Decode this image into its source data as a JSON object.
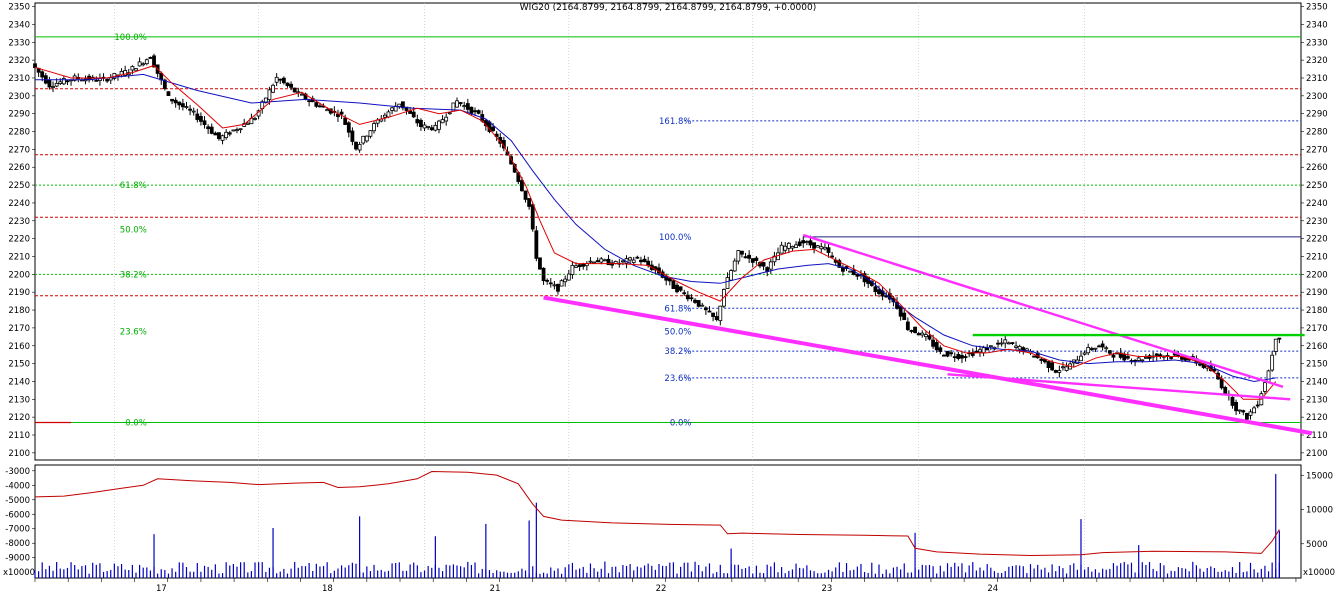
{
  "title": "WIG20 (2164.8799, 2164.8799, 2164.8799, 2164.8799, +0.0000)",
  "colors": {
    "candle": "#000000",
    "ma_fast": "#e00000",
    "ma_slow": "#1010c0",
    "trendline": "#ff30ff",
    "fib_green": "#00c000",
    "fib_blue": "#1030c0",
    "level_red": "#d00000",
    "volume": "#0000c0",
    "indicator": "#c00000"
  },
  "chart_data": [
    {
      "type": "candlestick",
      "title": "WIG20 (2164.8799, 2164.8799, 2164.8799, 2164.8799, +0.0000)",
      "x_axis": {
        "labels": [
          "17",
          "18",
          "21",
          "22",
          "23",
          "24"
        ]
      },
      "y_axis": {
        "range": [
          2096,
          2352
        ],
        "ticks": [
          2100,
          2110,
          2120,
          2130,
          2140,
          2150,
          2160,
          2170,
          2180,
          2190,
          2200,
          2210,
          2220,
          2230,
          2240,
          2250,
          2260,
          2270,
          2280,
          2290,
          2300,
          2310,
          2320,
          2330,
          2340,
          2350
        ]
      },
      "price_path": [
        [
          0,
          2318
        ],
        [
          5,
          2306
        ],
        [
          12,
          2310
        ],
        [
          20,
          2309
        ],
        [
          27,
          2314
        ],
        [
          33,
          2322
        ],
        [
          38,
          2299
        ],
        [
          45,
          2290
        ],
        [
          52,
          2276
        ],
        [
          58,
          2283
        ],
        [
          62,
          2288
        ],
        [
          68,
          2310
        ],
        [
          74,
          2301
        ],
        [
          80,
          2294
        ],
        [
          86,
          2289
        ],
        [
          90,
          2271
        ],
        [
          96,
          2286
        ],
        [
          102,
          2296
        ],
        [
          108,
          2283
        ],
        [
          112,
          2282
        ],
        [
          118,
          2297
        ],
        [
          124,
          2289
        ],
        [
          130,
          2274
        ],
        [
          134,
          2258
        ],
        [
          138,
          2238
        ],
        [
          140,
          2210
        ],
        [
          142,
          2196
        ],
        [
          146,
          2192
        ],
        [
          150,
          2204
        ],
        [
          156,
          2208
        ],
        [
          162,
          2206
        ],
        [
          168,
          2209
        ],
        [
          174,
          2201
        ],
        [
          178,
          2193
        ],
        [
          184,
          2185
        ],
        [
          190,
          2174
        ],
        [
          192,
          2192
        ],
        [
          196,
          2212
        ],
        [
          200,
          2208
        ],
        [
          204,
          2203
        ],
        [
          208,
          2215
        ],
        [
          214,
          2218
        ],
        [
          220,
          2214
        ],
        [
          224,
          2204
        ],
        [
          230,
          2199
        ],
        [
          234,
          2191
        ],
        [
          238,
          2187
        ],
        [
          240,
          2182
        ],
        [
          243,
          2170
        ],
        [
          248,
          2165
        ],
        [
          252,
          2156
        ],
        [
          258,
          2154
        ],
        [
          264,
          2158
        ],
        [
          270,
          2162
        ],
        [
          276,
          2157
        ],
        [
          280,
          2152
        ],
        [
          284,
          2146
        ],
        [
          288,
          2149
        ],
        [
          292,
          2157
        ],
        [
          296,
          2160
        ],
        [
          300,
          2155
        ],
        [
          306,
          2152
        ],
        [
          312,
          2155
        ],
        [
          318,
          2154
        ],
        [
          322,
          2152
        ],
        [
          328,
          2145
        ],
        [
          331,
          2134
        ],
        [
          334,
          2125
        ],
        [
          337,
          2120
        ],
        [
          340,
          2128
        ],
        [
          343,
          2146
        ],
        [
          345,
          2165
        ]
      ],
      "moving_average_fast": [
        [
          0,
          2316
        ],
        [
          10,
          2310
        ],
        [
          20,
          2310
        ],
        [
          27,
          2313
        ],
        [
          33,
          2317
        ],
        [
          38,
          2307
        ],
        [
          45,
          2295
        ],
        [
          52,
          2282
        ],
        [
          58,
          2284
        ],
        [
          66,
          2298
        ],
        [
          74,
          2302
        ],
        [
          82,
          2292
        ],
        [
          90,
          2284
        ],
        [
          98,
          2288
        ],
        [
          106,
          2293
        ],
        [
          112,
          2290
        ],
        [
          118,
          2292
        ],
        [
          124,
          2286
        ],
        [
          130,
          2272
        ],
        [
          136,
          2250
        ],
        [
          140,
          2230
        ],
        [
          144,
          2212
        ],
        [
          150,
          2206
        ],
        [
          156,
          2206
        ],
        [
          162,
          2206
        ],
        [
          170,
          2205
        ],
        [
          178,
          2196
        ],
        [
          184,
          2190
        ],
        [
          190,
          2185
        ],
        [
          196,
          2198
        ],
        [
          202,
          2208
        ],
        [
          210,
          2213
        ],
        [
          216,
          2214
        ],
        [
          222,
          2208
        ],
        [
          228,
          2202
        ],
        [
          234,
          2195
        ],
        [
          240,
          2183
        ],
        [
          246,
          2170
        ],
        [
          252,
          2160
        ],
        [
          258,
          2156
        ],
        [
          264,
          2156
        ],
        [
          270,
          2158
        ],
        [
          276,
          2156
        ],
        [
          282,
          2151
        ],
        [
          288,
          2148
        ],
        [
          294,
          2153
        ],
        [
          300,
          2156
        ],
        [
          306,
          2154
        ],
        [
          312,
          2154
        ],
        [
          318,
          2154
        ],
        [
          324,
          2150
        ],
        [
          330,
          2140
        ],
        [
          335,
          2130
        ],
        [
          340,
          2130
        ],
        [
          344,
          2140
        ]
      ],
      "moving_average_slow": [
        [
          0,
          2309
        ],
        [
          15,
          2309
        ],
        [
          30,
          2312
        ],
        [
          45,
          2303
        ],
        [
          60,
          2296
        ],
        [
          75,
          2298
        ],
        [
          90,
          2296
        ],
        [
          105,
          2293
        ],
        [
          118,
          2292
        ],
        [
          125,
          2287
        ],
        [
          132,
          2275
        ],
        [
          138,
          2258
        ],
        [
          144,
          2242
        ],
        [
          150,
          2228
        ],
        [
          158,
          2214
        ],
        [
          166,
          2205
        ],
        [
          174,
          2199
        ],
        [
          182,
          2196
        ],
        [
          190,
          2195
        ],
        [
          198,
          2199
        ],
        [
          206,
          2203
        ],
        [
          214,
          2205
        ],
        [
          220,
          2206
        ],
        [
          226,
          2203
        ],
        [
          232,
          2196
        ],
        [
          238,
          2185
        ],
        [
          244,
          2176
        ],
        [
          252,
          2166
        ],
        [
          260,
          2160
        ],
        [
          268,
          2158
        ],
        [
          276,
          2157
        ],
        [
          284,
          2152
        ],
        [
          292,
          2150
        ],
        [
          300,
          2151
        ],
        [
          308,
          2151
        ],
        [
          316,
          2152
        ],
        [
          324,
          2150
        ],
        [
          332,
          2143
        ],
        [
          338,
          2140
        ],
        [
          344,
          2142
        ]
      ],
      "horizontal_levels": {
        "red_dashed": [
          2304,
          2267,
          2232,
          2188
        ],
        "green_solid": [
          2333,
          2117
        ],
        "green_dashed": [
          2250,
          2200
        ],
        "blue_dashed": [
          2286,
          2181,
          2157,
          2142
        ],
        "navy_solid": 2221
      },
      "fibonacci_green": [
        {
          "label": "100.0%",
          "value": 2333
        },
        {
          "label": "61.8%",
          "value": 2250
        },
        {
          "label": "50.0%",
          "value": 2225
        },
        {
          "label": "38.2%",
          "value": 2200
        },
        {
          "label": "23.6%",
          "value": 2168
        },
        {
          "label": "0.0%",
          "value": 2117
        }
      ],
      "fibonacci_blue": [
        {
          "label": "161.8%",
          "value": 2286
        },
        {
          "label": "100.0%",
          "value": 2221
        },
        {
          "label": "61.8%",
          "value": 2181
        },
        {
          "label": "50.0%",
          "value": 2168
        },
        {
          "label": "38.2%",
          "value": 2157
        },
        {
          "label": "23.6%",
          "value": 2142
        },
        {
          "label": "0.0%",
          "value": 2117
        }
      ],
      "trendlines": [
        {
          "from": [
            141,
            2187
          ],
          "to": [
            354,
            2111
          ],
          "heavy": true
        },
        {
          "from": [
            213,
            2222
          ],
          "to": [
            346,
            2137
          ],
          "heavy": false
        },
        {
          "from": [
            253,
            2144
          ],
          "to": [
            348,
            2130
          ],
          "heavy": false
        },
        {
          "from": [
            260,
            2166
          ],
          "to": [
            352,
            2166
          ],
          "heavy": false,
          "green": true
        }
      ]
    },
    {
      "type": "bar+line",
      "y_axis_left": {
        "range": [
          -10400,
          -2600
        ],
        "ticks": [
          -3000,
          -4000,
          -5000,
          -6000,
          -7000,
          -8000,
          -9000
        ]
      },
      "y_axis_right": {
        "range": [
          0,
          16500
        ],
        "ticks": [
          5000,
          10000,
          15000
        ]
      },
      "left_unit": "x10000",
      "right_unit": "x10000",
      "indicator_path": [
        [
          0,
          -4800
        ],
        [
          8,
          -4750
        ],
        [
          16,
          -4500
        ],
        [
          24,
          -4200
        ],
        [
          30,
          -4000
        ],
        [
          34,
          -3550
        ],
        [
          44,
          -3700
        ],
        [
          54,
          -3800
        ],
        [
          62,
          -3950
        ],
        [
          72,
          -3850
        ],
        [
          80,
          -3800
        ],
        [
          84,
          -4150
        ],
        [
          90,
          -4100
        ],
        [
          98,
          -3900
        ],
        [
          106,
          -3550
        ],
        [
          110,
          -3050
        ],
        [
          120,
          -3100
        ],
        [
          128,
          -3300
        ],
        [
          134,
          -3900
        ],
        [
          138,
          -5300
        ],
        [
          141,
          -6150
        ],
        [
          146,
          -6400
        ],
        [
          160,
          -6600
        ],
        [
          176,
          -6700
        ],
        [
          190,
          -6750
        ],
        [
          192,
          -7350
        ],
        [
          196,
          -7300
        ],
        [
          212,
          -7400
        ],
        [
          230,
          -7450
        ],
        [
          242,
          -7500
        ],
        [
          244,
          -8350
        ],
        [
          250,
          -8600
        ],
        [
          262,
          -8750
        ],
        [
          276,
          -8850
        ],
        [
          290,
          -8800
        ],
        [
          296,
          -8650
        ],
        [
          310,
          -8550
        ],
        [
          330,
          -8600
        ],
        [
          340,
          -8700
        ],
        [
          343,
          -7850
        ],
        [
          345,
          -7050
        ]
      ],
      "volume_spikes": [
        [
          33,
          6400
        ],
        [
          66,
          7300
        ],
        [
          90,
          9000
        ],
        [
          111,
          6100
        ],
        [
          125,
          7900
        ],
        [
          137,
          8400
        ],
        [
          139,
          11000
        ],
        [
          193,
          4300
        ],
        [
          244,
          6600
        ],
        [
          290,
          8600
        ],
        [
          306,
          4800
        ],
        [
          344,
          15200
        ],
        [
          345,
          6900
        ]
      ]
    }
  ]
}
